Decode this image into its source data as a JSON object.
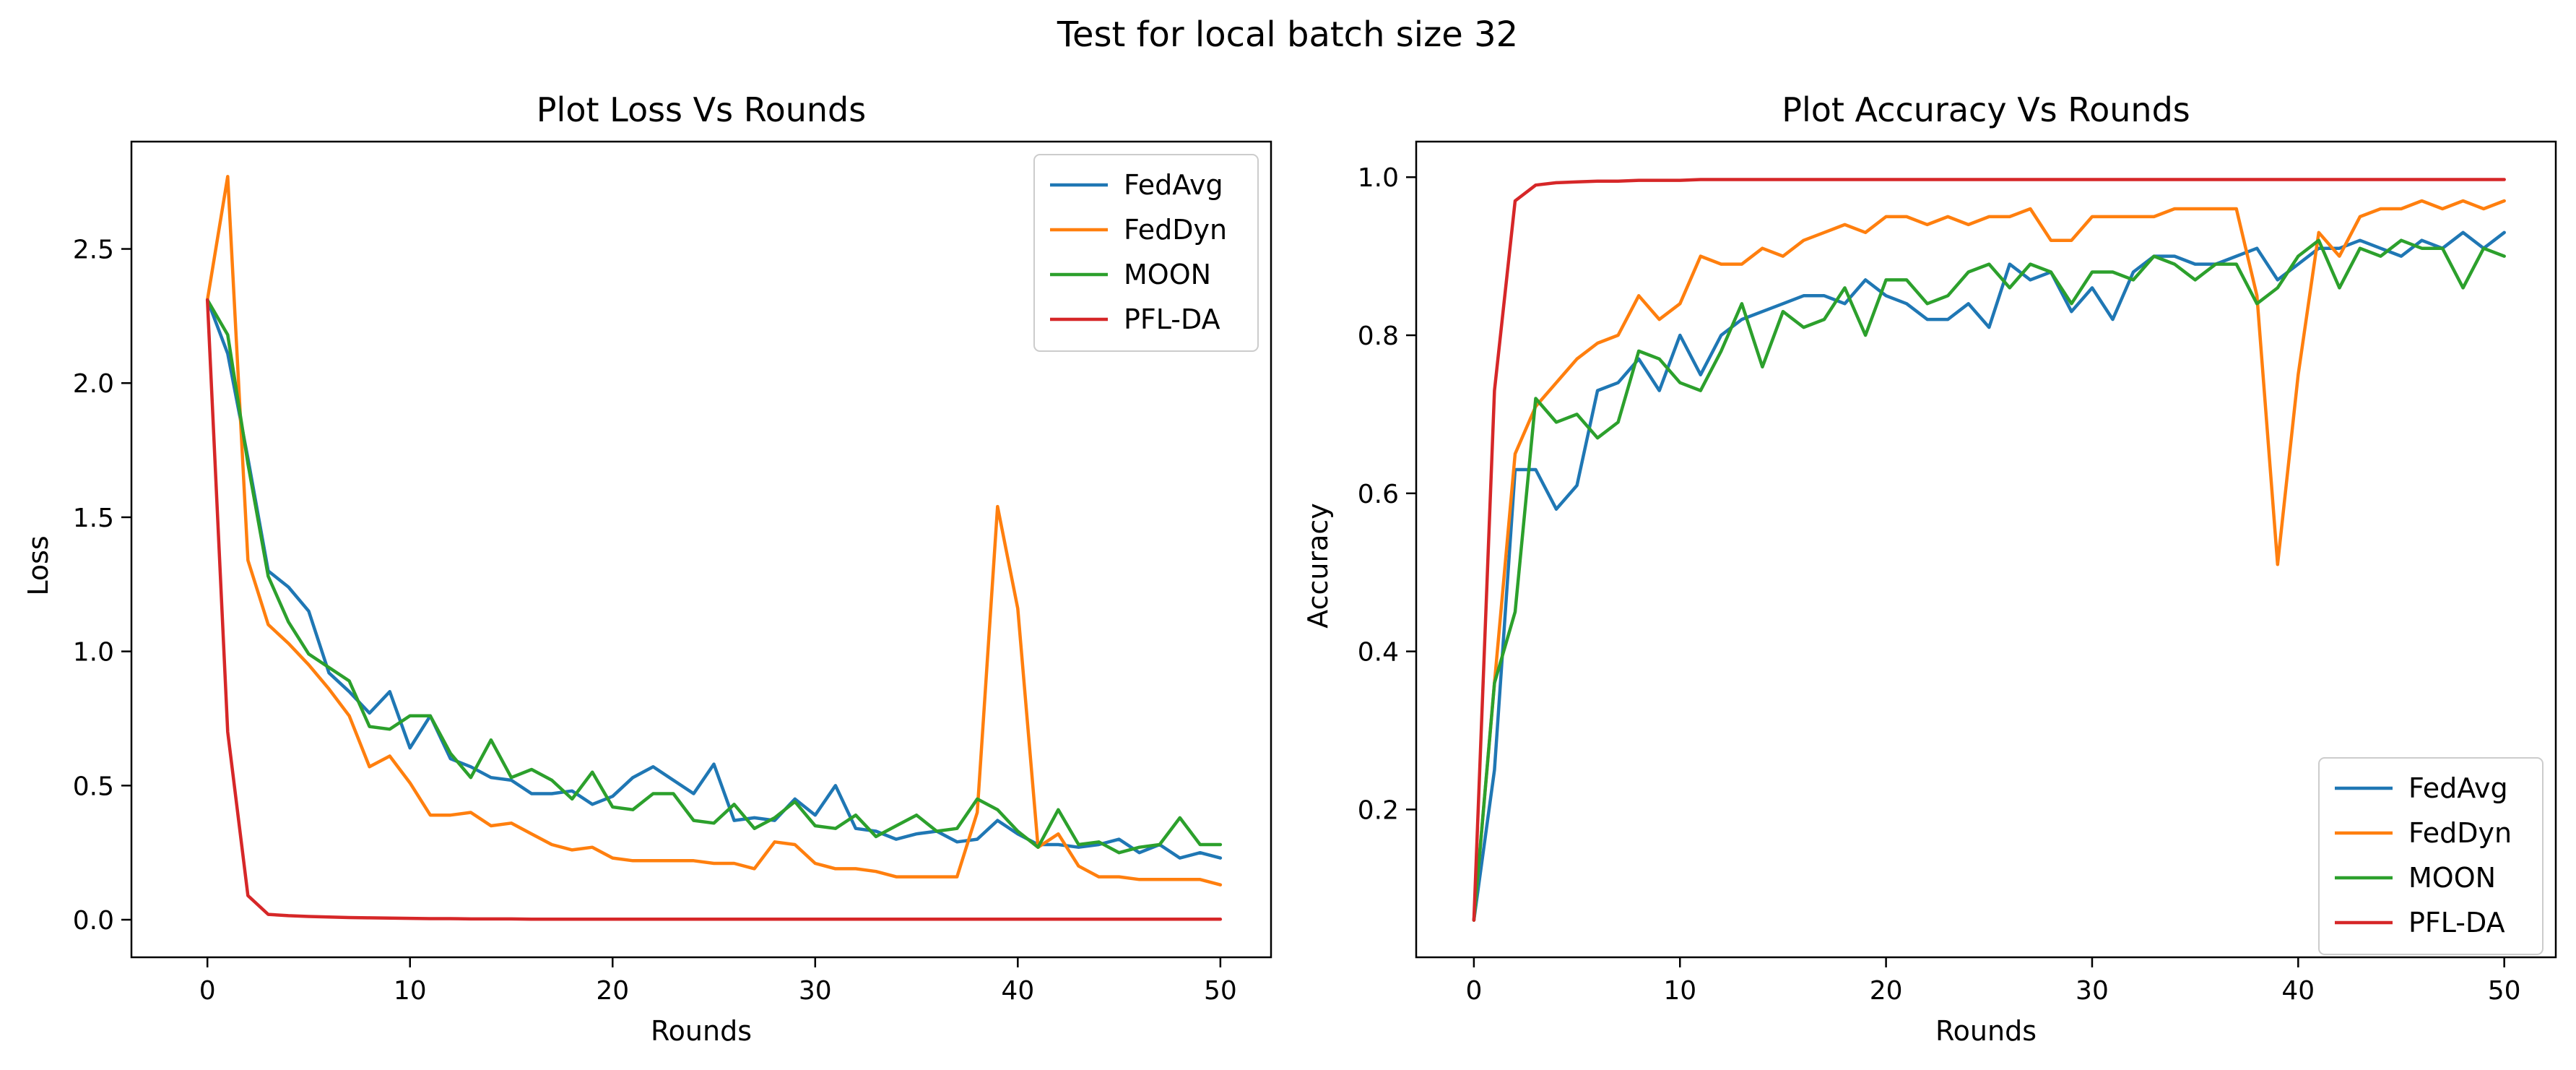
{
  "figure": {
    "suptitle": "Test for local batch size 32"
  },
  "chart_data": [
    {
      "type": "line",
      "title": "Plot Loss Vs Rounds",
      "xlabel": "Rounds",
      "ylabel": "Loss",
      "xlim": [
        -3.75,
        50
      ],
      "ylim": [
        -0.14,
        2.9
      ],
      "xticks": [
        0,
        10,
        20,
        30,
        40,
        50
      ],
      "yticks": [
        0.0,
        0.5,
        1.0,
        1.5,
        2.0,
        2.5
      ],
      "ytick_labels": [
        "0.0",
        "0.5",
        "1.0",
        "1.5",
        "2.0",
        "2.5"
      ],
      "legend_loc": "upper right",
      "x": [
        0,
        1,
        2,
        3,
        4,
        5,
        6,
        7,
        8,
        9,
        10,
        11,
        12,
        13,
        14,
        15,
        16,
        17,
        18,
        19,
        20,
        21,
        22,
        23,
        24,
        25,
        26,
        27,
        28,
        29,
        30,
        31,
        32,
        33,
        34,
        35,
        36,
        37,
        38,
        39,
        40,
        41,
        42,
        43,
        44,
        45,
        46,
        47,
        48,
        49,
        50
      ],
      "series": [
        {
          "name": "FedAvg",
          "color": "#1f77b4",
          "values": [
            2.31,
            2.11,
            1.72,
            1.3,
            1.24,
            1.15,
            0.92,
            0.85,
            0.77,
            0.85,
            0.64,
            0.76,
            0.6,
            0.57,
            0.53,
            0.52,
            0.47,
            0.47,
            0.48,
            0.43,
            0.46,
            0.53,
            0.57,
            0.52,
            0.47,
            0.58,
            0.37,
            0.38,
            0.37,
            0.45,
            0.39,
            0.5,
            0.34,
            0.33,
            0.3,
            0.32,
            0.33,
            0.29,
            0.3,
            0.37,
            0.32,
            0.28,
            0.28,
            0.27,
            0.28,
            0.3,
            0.25,
            0.28,
            0.23,
            0.25,
            0.23
          ]
        },
        {
          "name": "FedDyn",
          "color": "#ff7f0e",
          "values": [
            2.31,
            2.77,
            1.34,
            1.1,
            1.03,
            0.95,
            0.86,
            0.76,
            0.57,
            0.61,
            0.51,
            0.39,
            0.39,
            0.4,
            0.35,
            0.36,
            0.32,
            0.28,
            0.26,
            0.27,
            0.23,
            0.22,
            0.22,
            0.22,
            0.22,
            0.21,
            0.21,
            0.19,
            0.29,
            0.28,
            0.21,
            0.19,
            0.19,
            0.18,
            0.16,
            0.16,
            0.16,
            0.16,
            0.4,
            1.54,
            1.16,
            0.27,
            0.32,
            0.2,
            0.16,
            0.16,
            0.15,
            0.15,
            0.15,
            0.15,
            0.13
          ]
        },
        {
          "name": "MOON",
          "color": "#2ca02c",
          "values": [
            2.31,
            2.18,
            1.7,
            1.28,
            1.11,
            0.99,
            0.94,
            0.89,
            0.72,
            0.71,
            0.76,
            0.76,
            0.62,
            0.53,
            0.67,
            0.53,
            0.56,
            0.52,
            0.45,
            0.55,
            0.42,
            0.41,
            0.47,
            0.47,
            0.37,
            0.36,
            0.43,
            0.34,
            0.38,
            0.44,
            0.35,
            0.34,
            0.39,
            0.31,
            0.35,
            0.39,
            0.33,
            0.34,
            0.45,
            0.41,
            0.33,
            0.27,
            0.41,
            0.28,
            0.29,
            0.25,
            0.27,
            0.28,
            0.38,
            0.28,
            0.28
          ]
        },
        {
          "name": "PFL-DA",
          "color": "#d62728",
          "values": [
            2.31,
            0.7,
            0.09,
            0.02,
            0.015,
            0.012,
            0.01,
            0.008,
            0.007,
            0.006,
            0.005,
            0.004,
            0.004,
            0.003,
            0.003,
            0.003,
            0.002,
            0.002,
            0.002,
            0.002,
            0.002,
            0.002,
            0.002,
            0.002,
            0.002,
            0.002,
            0.002,
            0.002,
            0.002,
            0.002,
            0.002,
            0.002,
            0.002,
            0.002,
            0.002,
            0.002,
            0.002,
            0.002,
            0.002,
            0.002,
            0.002,
            0.002,
            0.002,
            0.002,
            0.002,
            0.002,
            0.002,
            0.002,
            0.002,
            0.002,
            0.002
          ]
        }
      ]
    },
    {
      "type": "line",
      "title": "Plot Accuracy Vs Rounds",
      "xlabel": "Rounds",
      "ylabel": "Accuracy",
      "xlim": [
        -2.8,
        50
      ],
      "ylim": [
        0.013,
        1.045
      ],
      "xticks": [
        0,
        10,
        20,
        30,
        40,
        50
      ],
      "yticks": [
        0.2,
        0.4,
        0.6,
        0.8,
        1.0
      ],
      "ytick_labels": [
        "0.2",
        "0.4",
        "0.6",
        "0.8",
        "1.0"
      ],
      "legend_loc": "lower right",
      "x": [
        0,
        1,
        2,
        3,
        4,
        5,
        6,
        7,
        8,
        9,
        10,
        11,
        12,
        13,
        14,
        15,
        16,
        17,
        18,
        19,
        20,
        21,
        22,
        23,
        24,
        25,
        26,
        27,
        28,
        29,
        30,
        31,
        32,
        33,
        34,
        35,
        36,
        37,
        38,
        39,
        40,
        41,
        42,
        43,
        44,
        45,
        46,
        47,
        48,
        49,
        50
      ],
      "series": [
        {
          "name": "FedAvg",
          "color": "#1f77b4",
          "values": [
            0.06,
            0.25,
            0.63,
            0.63,
            0.58,
            0.61,
            0.73,
            0.74,
            0.77,
            0.73,
            0.8,
            0.75,
            0.8,
            0.82,
            0.83,
            0.84,
            0.85,
            0.85,
            0.84,
            0.87,
            0.85,
            0.84,
            0.82,
            0.82,
            0.84,
            0.81,
            0.89,
            0.87,
            0.88,
            0.83,
            0.86,
            0.82,
            0.88,
            0.9,
            0.9,
            0.89,
            0.89,
            0.9,
            0.91,
            0.87,
            0.89,
            0.91,
            0.91,
            0.92,
            0.91,
            0.9,
            0.92,
            0.91,
            0.93,
            0.91,
            0.93
          ]
        },
        {
          "name": "FedDyn",
          "color": "#ff7f0e",
          "values": [
            0.06,
            0.36,
            0.65,
            0.71,
            0.74,
            0.77,
            0.79,
            0.8,
            0.85,
            0.82,
            0.84,
            0.9,
            0.89,
            0.89,
            0.91,
            0.9,
            0.92,
            0.93,
            0.94,
            0.93,
            0.95,
            0.95,
            0.94,
            0.95,
            0.94,
            0.95,
            0.95,
            0.96,
            0.92,
            0.92,
            0.95,
            0.95,
            0.95,
            0.95,
            0.96,
            0.96,
            0.96,
            0.96,
            0.85,
            0.51,
            0.75,
            0.93,
            0.9,
            0.95,
            0.96,
            0.96,
            0.97,
            0.96,
            0.97,
            0.96,
            0.97
          ]
        },
        {
          "name": "MOON",
          "color": "#2ca02c",
          "values": [
            0.06,
            0.36,
            0.45,
            0.72,
            0.69,
            0.7,
            0.67,
            0.69,
            0.78,
            0.77,
            0.74,
            0.73,
            0.78,
            0.84,
            0.76,
            0.83,
            0.81,
            0.82,
            0.86,
            0.8,
            0.87,
            0.87,
            0.84,
            0.85,
            0.88,
            0.89,
            0.86,
            0.89,
            0.88,
            0.84,
            0.88,
            0.88,
            0.87,
            0.9,
            0.89,
            0.87,
            0.89,
            0.89,
            0.84,
            0.86,
            0.9,
            0.92,
            0.86,
            0.91,
            0.9,
            0.92,
            0.91,
            0.91,
            0.86,
            0.91,
            0.9
          ]
        },
        {
          "name": "PFL-DA",
          "color": "#d62728",
          "values": [
            0.06,
            0.73,
            0.97,
            0.99,
            0.993,
            0.994,
            0.995,
            0.995,
            0.996,
            0.996,
            0.996,
            0.997,
            0.997,
            0.997,
            0.997,
            0.997,
            0.997,
            0.997,
            0.997,
            0.997,
            0.997,
            0.997,
            0.997,
            0.997,
            0.997,
            0.997,
            0.997,
            0.997,
            0.997,
            0.997,
            0.997,
            0.997,
            0.997,
            0.997,
            0.997,
            0.997,
            0.997,
            0.997,
            0.997,
            0.997,
            0.997,
            0.997,
            0.997,
            0.997,
            0.997,
            0.997,
            0.997,
            0.997,
            0.997,
            0.997,
            0.997
          ]
        }
      ]
    }
  ]
}
